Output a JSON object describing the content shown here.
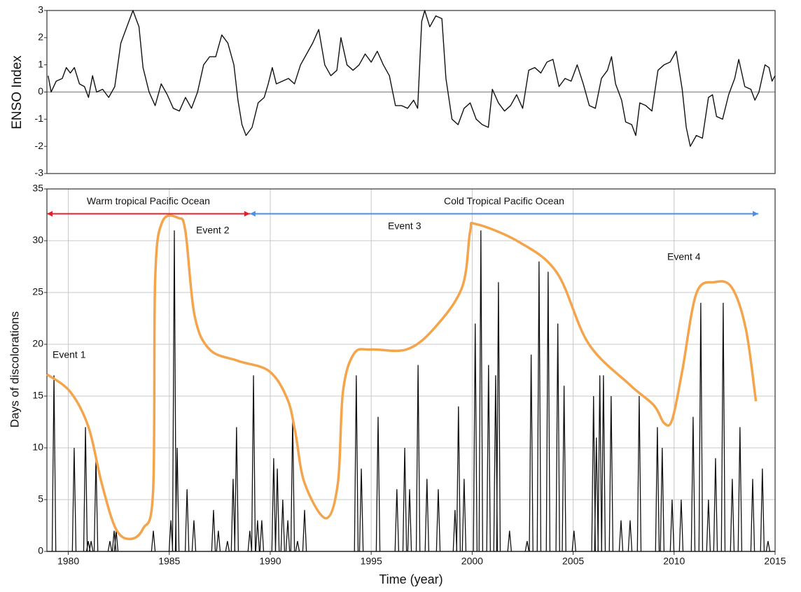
{
  "chart_data": [
    {
      "type": "line",
      "ylabel": "ENSO Index",
      "xlim": [
        1978.94,
        2015
      ],
      "ylim": [
        -3,
        3
      ],
      "yticks": [
        -3,
        -2,
        -1,
        0,
        1,
        2,
        3
      ],
      "zero_line": true,
      "series": [
        {
          "color": "#111111",
          "x": [
            1979.0,
            1979.15,
            1979.4,
            1979.7,
            1979.9,
            1980.1,
            1980.3,
            1980.55,
            1980.8,
            1981.0,
            1981.2,
            1981.4,
            1981.7,
            1982.0,
            1982.3,
            1982.6,
            1982.9,
            1983.2,
            1983.5,
            1983.7,
            1984.0,
            1984.3,
            1984.6,
            1984.9,
            1985.2,
            1985.5,
            1985.8,
            1986.1,
            1986.4,
            1986.7,
            1987.0,
            1987.3,
            1987.6,
            1987.9,
            1988.2,
            1988.4,
            1988.6,
            1988.8,
            1989.1,
            1989.4,
            1989.7,
            1989.9,
            1990.1,
            1990.3,
            1990.6,
            1990.9,
            1991.2,
            1991.5,
            1991.8,
            1992.1,
            1992.4,
            1992.7,
            1993.0,
            1993.3,
            1993.5,
            1993.8,
            1994.1,
            1994.4,
            1994.7,
            1995.0,
            1995.3,
            1995.6,
            1995.9,
            1996.2,
            1996.5,
            1996.8,
            1997.1,
            1997.3,
            1997.5,
            1997.65,
            1997.9,
            1998.2,
            1998.5,
            1998.7,
            1999.0,
            1999.3,
            1999.6,
            1999.9,
            2000.2,
            2000.5,
            2000.8,
            2001.0,
            2001.3,
            2001.6,
            2001.9,
            2002.2,
            2002.5,
            2002.8,
            2003.1,
            2003.4,
            2003.7,
            2004.0,
            2004.3,
            2004.6,
            2004.9,
            2005.2,
            2005.5,
            2005.8,
            2006.1,
            2006.4,
            2006.7,
            2006.9,
            2007.1,
            2007.4,
            2007.6,
            2007.9,
            2008.1,
            2008.3,
            2008.6,
            2008.9,
            2009.2,
            2009.5,
            2009.8,
            2010.1,
            2010.4,
            2010.6,
            2010.8,
            2011.1,
            2011.4,
            2011.7,
            2011.9,
            2012.1,
            2012.4,
            2012.7,
            2013.0,
            2013.2,
            2013.5,
            2013.8,
            2014.0,
            2014.2,
            2014.5,
            2014.7,
            2014.85,
            2015.0
          ],
          "values": [
            0.6,
            0.0,
            0.4,
            0.5,
            0.9,
            0.7,
            0.9,
            0.3,
            0.2,
            -0.2,
            0.6,
            0.0,
            0.1,
            -0.2,
            0.2,
            1.8,
            2.4,
            3.0,
            2.4,
            0.9,
            0.0,
            -0.5,
            0.3,
            -0.1,
            -0.6,
            -0.7,
            -0.2,
            -0.6,
            0.0,
            1.0,
            1.3,
            1.3,
            2.1,
            1.8,
            1.0,
            -0.3,
            -1.2,
            -1.6,
            -1.3,
            -0.4,
            -0.2,
            0.3,
            0.9,
            0.3,
            0.4,
            0.5,
            0.3,
            1.0,
            1.4,
            1.8,
            2.3,
            1.0,
            0.6,
            0.8,
            2.0,
            1.0,
            0.8,
            1.0,
            1.4,
            1.1,
            1.5,
            1.0,
            0.6,
            -0.5,
            -0.5,
            -0.6,
            -0.3,
            -0.6,
            2.6,
            3.0,
            2.4,
            2.8,
            2.7,
            0.5,
            -1.0,
            -1.2,
            -0.6,
            -0.4,
            -1.0,
            -1.2,
            -1.3,
            0.1,
            -0.4,
            -0.7,
            -0.5,
            -0.1,
            -0.6,
            0.8,
            0.9,
            0.7,
            1.1,
            1.2,
            0.2,
            0.5,
            0.4,
            1.0,
            0.3,
            -0.5,
            -0.6,
            0.5,
            0.8,
            1.3,
            0.3,
            -0.3,
            -1.1,
            -1.2,
            -1.6,
            -0.4,
            -0.5,
            -0.7,
            0.8,
            1.0,
            1.1,
            1.5,
            0.1,
            -1.3,
            -2.0,
            -1.6,
            -1.7,
            -0.2,
            -0.1,
            -0.9,
            -1.0,
            -0.1,
            0.5,
            1.2,
            0.2,
            0.1,
            -0.3,
            0.0,
            1.0,
            0.9,
            0.4,
            0.6
          ]
        }
      ]
    },
    {
      "type": "spike",
      "xlabel": "Time (year)",
      "ylabel": "Days of discolorations",
      "xlim": [
        1978.94,
        2015
      ],
      "ylim": [
        0,
        35
      ],
      "xticks": [
        1980,
        1985,
        1990,
        1995,
        2000,
        2005,
        2010,
        2015
      ],
      "yticks": [
        0,
        5,
        10,
        15,
        20,
        25,
        30,
        35
      ],
      "grid": true,
      "series": [
        {
          "color": "#111111",
          "x": [
            1979.29,
            1980.29,
            1980.85,
            1980.99,
            1981.13,
            1981.37,
            1982.06,
            1982.27,
            1982.37,
            1984.21,
            1985.08,
            1985.25,
            1985.39,
            1985.88,
            1986.22,
            1987.19,
            1987.43,
            1987.88,
            1988.16,
            1988.33,
            1988.99,
            1989.17,
            1989.37,
            1989.58,
            1990.17,
            1990.35,
            1990.62,
            1990.87,
            1991.11,
            1991.35,
            1991.7,
            1994.26,
            1994.51,
            1995.34,
            1996.27,
            1996.66,
            1996.9,
            1997.32,
            1997.76,
            1998.32,
            1999.15,
            1999.32,
            1999.6,
            2000.15,
            2000.43,
            2000.81,
            2001.16,
            2001.3,
            2001.85,
            2002.72,
            2002.92,
            2003.31,
            2003.76,
            2004.24,
            2004.55,
            2005.04,
            2006.01,
            2006.15,
            2006.32,
            2006.5,
            2006.88,
            2007.37,
            2007.82,
            2008.27,
            2009.17,
            2009.41,
            2009.9,
            2010.35,
            2010.94,
            2011.32,
            2011.7,
            2012.05,
            2012.43,
            2012.88,
            2013.26,
            2013.89,
            2014.37,
            2014.65
          ],
          "values": [
            17,
            10,
            12,
            1,
            1,
            9,
            1,
            2,
            2,
            2,
            3,
            31,
            10,
            6,
            3,
            4,
            2,
            1,
            7,
            12,
            2,
            17,
            3,
            3,
            9,
            8,
            5,
            3,
            13,
            1,
            4,
            17,
            8,
            13,
            6,
            10,
            6,
            18,
            7,
            6,
            4,
            14,
            7,
            22,
            31,
            18,
            17,
            26,
            2,
            1,
            19,
            28,
            27,
            22,
            16,
            2,
            15,
            11,
            17,
            17,
            15,
            3,
            3,
            15,
            12,
            10,
            5,
            5,
            13,
            24,
            5,
            9,
            24,
            7,
            12,
            7,
            8,
            1
          ]
        },
        {
          "type": "curve",
          "color": "#f4a54c",
          "x": [
            1978.94,
            1980.1,
            1981.0,
            1981.65,
            1982.35,
            1983.05,
            1983.7,
            1984.2,
            1984.3,
            1984.65,
            1985.45,
            1985.8,
            1986.25,
            1987.0,
            1988.4,
            1989.95,
            1990.85,
            1991.25,
            1991.7,
            1992.75,
            1993.35,
            1993.6,
            1994.15,
            1995.0,
            1996.75,
            1998.1,
            1999.5,
            1999.9,
            2000.2,
            2002.3,
            2004.2,
            2005.75,
            2007.8,
            2009.0,
            2009.5,
            2009.9,
            2010.4,
            2011.1,
            2012.0,
            2012.85,
            2013.55,
            2014.05
          ],
          "values": [
            17.1,
            15.4,
            12.0,
            6.6,
            2.2,
            1.2,
            2.2,
            5.9,
            26.2,
            31.8,
            32.2,
            30.9,
            22.8,
            19.5,
            18.4,
            17.4,
            14.7,
            11.4,
            6.6,
            3.2,
            6.6,
            15.4,
            19.1,
            19.5,
            19.5,
            21.5,
            25.5,
            30.9,
            31.6,
            29.9,
            26.9,
            20.1,
            16.1,
            14.1,
            12.4,
            12.7,
            17.4,
            24.9,
            26.0,
            25.5,
            21.5,
            14.5
          ]
        }
      ],
      "periods": [
        {
          "label": "Warm tropical Pacific Ocean",
          "from": 1978.94,
          "to": 1988.99,
          "y": 32.6,
          "color": "#e0202a"
        },
        {
          "label": "Cold Tropical Pacific Ocean",
          "from": 1988.99,
          "to": 2014.17,
          "y": 32.6,
          "color": "#4a8ee8"
        }
      ],
      "annotations": [
        "Event 1",
        "Event 2",
        "Event 3",
        "Event 4"
      ]
    }
  ]
}
